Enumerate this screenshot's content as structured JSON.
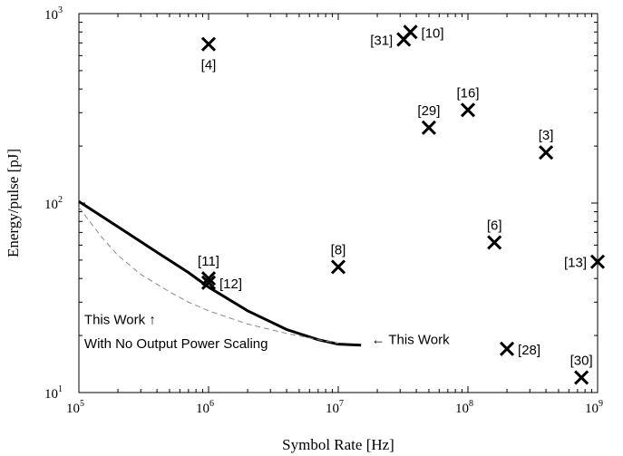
{
  "chart_data": {
    "type": "scatter",
    "title": "",
    "xlabel": "Symbol Rate [Hz]",
    "ylabel": "Energy/pulse [pJ]",
    "xscale": "log",
    "yscale": "log",
    "xlim": [
      100000,
      1000000000
    ],
    "ylim": [
      10,
      1000
    ],
    "x_ticks": [
      {
        "value": 100000,
        "base": "10",
        "exp": "5"
      },
      {
        "value": 1000000,
        "base": "10",
        "exp": "6"
      },
      {
        "value": 10000000,
        "base": "10",
        "exp": "7"
      },
      {
        "value": 100000000,
        "base": "10",
        "exp": "8"
      },
      {
        "value": 1000000000,
        "base": "10",
        "exp": "9"
      }
    ],
    "y_ticks": [
      {
        "value": 10,
        "base": "10",
        "exp": "1"
      },
      {
        "value": 100,
        "base": "10",
        "exp": "2"
      },
      {
        "value": 1000,
        "base": "10",
        "exp": "3"
      }
    ],
    "grid": false,
    "points": [
      {
        "label": "[4]",
        "x": 1000000,
        "y": 690,
        "label_pos": "below"
      },
      {
        "label": "[31]",
        "x": 32000000,
        "y": 730,
        "label_pos": "left"
      },
      {
        "label": "[10]",
        "x": 36000000,
        "y": 800,
        "label_pos": "right"
      },
      {
        "label": "[29]",
        "x": 50000000,
        "y": 250,
        "label_pos": "above"
      },
      {
        "label": "[16]",
        "x": 100000000,
        "y": 310,
        "label_pos": "above"
      },
      {
        "label": "[3]",
        "x": 400000000,
        "y": 185,
        "label_pos": "above"
      },
      {
        "label": "[11]",
        "x": 1000000,
        "y": 40,
        "label_pos": "above"
      },
      {
        "label": "[12]",
        "x": 1000000,
        "y": 38,
        "label_pos": "right"
      },
      {
        "label": "[8]",
        "x": 10000000,
        "y": 46,
        "label_pos": "above"
      },
      {
        "label": "[6]",
        "x": 160000000,
        "y": 62,
        "label_pos": "above"
      },
      {
        "label": "[13]",
        "x": 1000000000,
        "y": 49,
        "label_pos": "left"
      },
      {
        "label": "[28]",
        "x": 200000000,
        "y": 17,
        "label_pos": "right"
      },
      {
        "label": "[30]",
        "x": 750000000,
        "y": 12,
        "label_pos": "above"
      }
    ],
    "series": [
      {
        "style": "solid",
        "x": [
          100000,
          200000,
          400000,
          700000,
          1000000,
          2000000,
          4000000,
          7000000,
          10000000,
          15000000
        ],
        "y": [
          102,
          75,
          55,
          43,
          36,
          27,
          21.5,
          19,
          18,
          17.8
        ]
      },
      {
        "style": "dashed",
        "x": [
          100000,
          150000,
          200000,
          300000,
          500000,
          700000,
          1000000,
          2000000,
          4000000,
          7000000,
          10000000
        ],
        "y": [
          95,
          66,
          53,
          42,
          34,
          30,
          27,
          23,
          20.5,
          19,
          18.2
        ]
      }
    ],
    "annotations": [
      {
        "text": "This Work ↑",
        "x": 110000,
        "y": 23
      },
      {
        "text": "With No Output Power Scaling",
        "x": 110000,
        "y": 17.2
      },
      {
        "text": "← This Work",
        "x": 18000000,
        "y": 18
      }
    ]
  }
}
